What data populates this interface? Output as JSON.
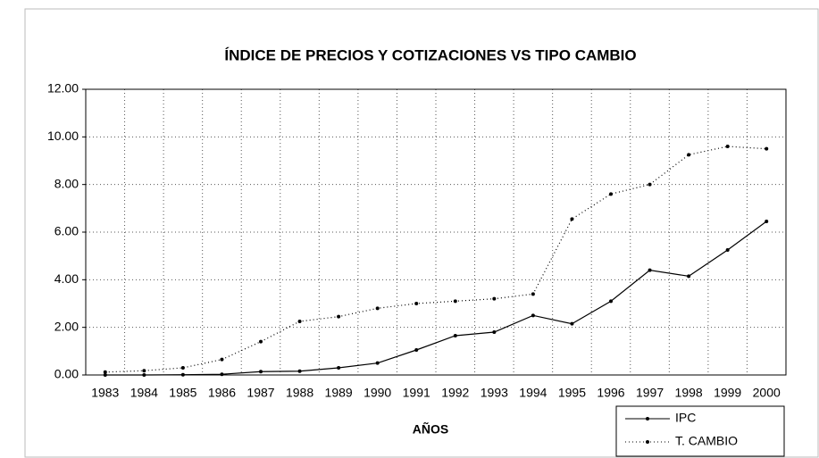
{
  "chart_data": {
    "type": "line",
    "title": "ÍNDICE DE PRECIOS Y COTIZACIONES VS TIPO CAMBIO",
    "x_label": "AÑOS",
    "categories": [
      "1983",
      "1984",
      "1985",
      "1986",
      "1987",
      "1988",
      "1989",
      "1990",
      "1991",
      "1992",
      "1993",
      "1994",
      "1995",
      "1996",
      "1997",
      "1998",
      "1999",
      "2000"
    ],
    "series": [
      {
        "name": "IPC",
        "color": "#000000",
        "dash": "solid",
        "values": [
          0.0,
          0.0,
          0.01,
          0.03,
          0.14,
          0.16,
          0.3,
          0.5,
          1.05,
          1.65,
          1.8,
          2.5,
          2.15,
          3.1,
          4.4,
          4.15,
          5.25,
          6.45
        ]
      },
      {
        "name": "T. CAMBIO",
        "color": "#000000",
        "dash": "dotted",
        "values": [
          0.12,
          0.18,
          0.3,
          0.65,
          1.4,
          2.25,
          2.45,
          2.8,
          3.0,
          3.1,
          3.2,
          3.4,
          6.55,
          7.6,
          8.0,
          9.25,
          9.6,
          9.5
        ]
      }
    ],
    "ylim": [
      0,
      12
    ],
    "yticks": [
      {
        "value": 0,
        "label": "0.00"
      },
      {
        "value": 2,
        "label": "2.00"
      },
      {
        "value": 4,
        "label": "4.00"
      },
      {
        "value": 6,
        "label": "6.00"
      },
      {
        "value": 8,
        "label": "8.00"
      },
      {
        "value": 10,
        "label": "10.00"
      },
      {
        "value": 12,
        "label": "12.00"
      }
    ],
    "grid": true,
    "legend": "lower right"
  }
}
